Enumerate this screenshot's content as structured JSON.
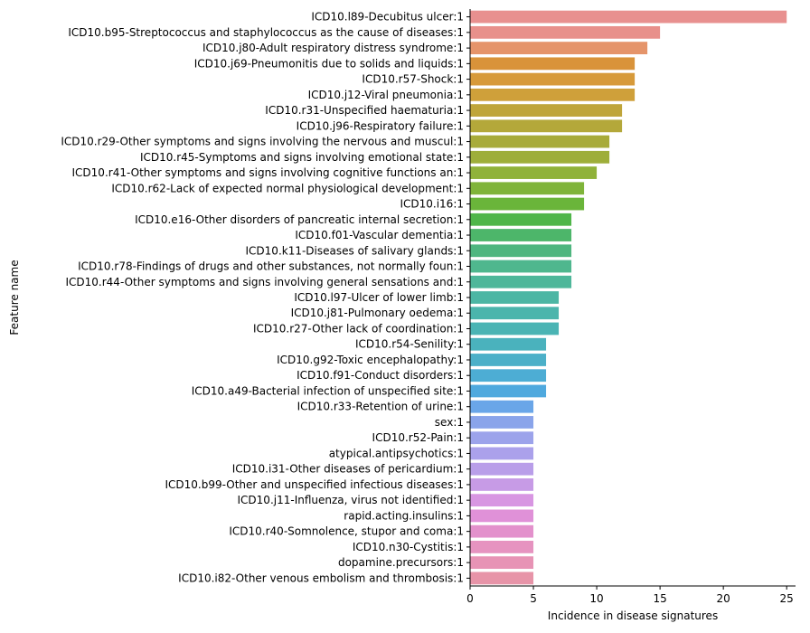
{
  "chart_data": {
    "type": "bar",
    "orientation": "horizontal",
    "xlabel": "Incidence in disease signatures",
    "ylabel": "Feature name",
    "xlim": [
      0,
      25.7
    ],
    "xticks": [
      0,
      5,
      10,
      15,
      20,
      25
    ],
    "grid": false,
    "categories": [
      "ICD10.l89-Decubitus ulcer:1",
      "ICD10.b95-Streptococcus and staphylococcus as the cause of diseases:1",
      "ICD10.j80-Adult respiratory distress syndrome:1",
      "ICD10.j69-Pneumonitis due to solids and liquids:1",
      "ICD10.r57-Shock:1",
      "ICD10.j12-Viral pneumonia:1",
      "ICD10.r31-Unspecified haematuria:1",
      "ICD10.j96-Respiratory failure:1",
      "ICD10.r29-Other symptoms and signs involving the nervous and muscul:1",
      "ICD10.r45-Symptoms and signs involving emotional state:1",
      "ICD10.r41-Other symptoms and signs involving cognitive functions an:1",
      "ICD10.r62-Lack of expected normal physiological development:1",
      "ICD10.i16:1",
      "ICD10.e16-Other disorders of pancreatic internal secretion:1",
      "ICD10.f01-Vascular dementia:1",
      "ICD10.k11-Diseases of salivary glands:1",
      "ICD10.r78-Findings of drugs and other substances, not normally foun:1",
      "ICD10.r44-Other symptoms and signs involving general sensations and:1",
      "ICD10.l97-Ulcer of lower limb:1",
      "ICD10.j81-Pulmonary oedema:1",
      "ICD10.r27-Other lack of coordination:1",
      "ICD10.r54-Senility:1",
      "ICD10.g92-Toxic encephalopathy:1",
      "ICD10.f91-Conduct disorders:1",
      "ICD10.a49-Bacterial infection of unspecified site:1",
      "ICD10.r33-Retention of urine:1",
      "sex:1",
      "ICD10.r52-Pain:1",
      "atypical.antipsychotics:1",
      "ICD10.i31-Other diseases of pericardium:1",
      "ICD10.b99-Other and unspecified infectious diseases:1",
      "ICD10.j11-Influenza, virus not identified:1",
      "rapid.acting.insulins:1",
      "ICD10.r40-Somnolence, stupor and coma:1",
      "ICD10.n30-Cystitis:1",
      "dopamine.precursors:1",
      "ICD10.i82-Other venous embolism and thrombosis:1"
    ],
    "values": [
      25,
      15,
      14,
      13,
      13,
      13,
      12,
      12,
      11,
      11,
      10,
      9,
      9,
      8,
      8,
      8,
      8,
      8,
      7,
      7,
      7,
      6,
      6,
      6,
      6,
      5,
      5,
      5,
      5,
      5,
      5,
      5,
      5,
      5,
      5,
      5,
      5
    ],
    "colors": [
      "#e8908f",
      "#e8908b",
      "#e5946a",
      "#d9933a",
      "#d79a3a",
      "#cfa03a",
      "#bfa53a",
      "#b4a83a",
      "#a8ab3a",
      "#9eae3a",
      "#90b23a",
      "#7fb43a",
      "#6ab53a",
      "#4fb649",
      "#4db66a",
      "#4eb67f",
      "#4fb78e",
      "#4eb79a",
      "#4cb6a4",
      "#4bb5ac",
      "#4ab4b4",
      "#4ab2bd",
      "#4cb0c8",
      "#4dadd4",
      "#4fa9de",
      "#6aa6e8",
      "#8aa4ea",
      "#9ca3eb",
      "#aba1eb",
      "#b99ee9",
      "#c79be6",
      "#d896e2",
      "#e091d8",
      "#e391cc",
      "#e693c0",
      "#e793b5",
      "#e794a8"
    ]
  }
}
